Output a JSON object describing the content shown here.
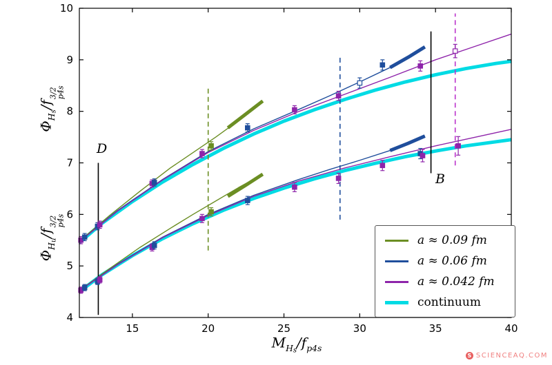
{
  "watermark": {
    "text": "SCIENCEAQ.COM",
    "icon": "S"
  },
  "palette": {
    "green": "#6b8e23",
    "blue": "#1f4e9c",
    "purple": "#8e24aa",
    "magenta": "#bb33cc",
    "cyan": "#00dbe4",
    "black": "#000000"
  },
  "chart_data": {
    "type": "line",
    "xlim": [
      11.5,
      40
    ],
    "ylim": [
      4,
      10
    ],
    "xticks": [
      15,
      20,
      25,
      30,
      35,
      40
    ],
    "yticks": [
      4,
      5,
      6,
      7,
      8,
      9,
      10
    ],
    "xlabel_parts": [
      {
        "t": "M",
        "s": "n"
      },
      {
        "t": "H",
        "s": "sub"
      },
      {
        "t": "s",
        "s": "sub2"
      },
      {
        "t": "/",
        "s": "n"
      },
      {
        "t": "f",
        "s": "n"
      },
      {
        "t": "p4s",
        "s": "sub"
      }
    ],
    "ylabel_upper_parts": [
      {
        "t": "Φ",
        "s": "n"
      },
      {
        "t": "H",
        "s": "sub"
      },
      {
        "t": "s",
        "s": "sub2"
      },
      {
        "t": "/",
        "s": "n"
      },
      {
        "t": "f",
        "s": "n"
      },
      {
        "top": "3/2",
        "bottom": "p4s",
        "s": "stack"
      }
    ],
    "ylabel_lower_parts": [
      {
        "t": "Φ",
        "s": "n"
      },
      {
        "t": "H",
        "s": "sub"
      },
      {
        "t": "u",
        "s": "sub2"
      },
      {
        "t": "/",
        "s": "n"
      },
      {
        "t": "f",
        "s": "n"
      },
      {
        "top": "3/2",
        "bottom": "p4s",
        "s": "stack"
      }
    ],
    "series": [
      {
        "name": "continuum-upper",
        "color": "cyan",
        "width": 5,
        "points": [
          [
            11.5,
            5.45
          ],
          [
            13,
            5.83
          ],
          [
            15,
            6.25
          ],
          [
            17,
            6.63
          ],
          [
            19,
            6.97
          ],
          [
            21,
            7.28
          ],
          [
            23,
            7.56
          ],
          [
            25,
            7.81
          ],
          [
            27,
            8.03
          ],
          [
            29,
            8.23
          ],
          [
            31,
            8.41
          ],
          [
            33,
            8.57
          ],
          [
            35,
            8.71
          ],
          [
            37,
            8.83
          ],
          [
            39,
            8.93
          ],
          [
            40,
            8.97
          ]
        ]
      },
      {
        "name": "continuum-lower",
        "color": "cyan",
        "width": 5,
        "points": [
          [
            11.5,
            4.5
          ],
          [
            13,
            4.83
          ],
          [
            15,
            5.2
          ],
          [
            17,
            5.53
          ],
          [
            19,
            5.82
          ],
          [
            21,
            6.08
          ],
          [
            23,
            6.31
          ],
          [
            25,
            6.51
          ],
          [
            27,
            6.69
          ],
          [
            29,
            6.85
          ],
          [
            31,
            6.99
          ],
          [
            33,
            7.12
          ],
          [
            35,
            7.23
          ],
          [
            37,
            7.33
          ],
          [
            39,
            7.41
          ],
          [
            40,
            7.45
          ]
        ]
      },
      {
        "name": "a0.09-upper",
        "color": "green",
        "width": 1.4,
        "points": [
          [
            11.5,
            5.48
          ],
          [
            13.5,
            5.98
          ],
          [
            15.5,
            6.45
          ],
          [
            17.5,
            6.9
          ],
          [
            19,
            7.2
          ],
          [
            20.5,
            7.5
          ],
          [
            22,
            7.82
          ],
          [
            23.6,
            8.2
          ]
        ]
      },
      {
        "name": "a0.09-lower",
        "color": "green",
        "width": 1.4,
        "points": [
          [
            11.5,
            4.52
          ],
          [
            13.5,
            4.95
          ],
          [
            15.5,
            5.36
          ],
          [
            17.5,
            5.73
          ],
          [
            19,
            6.0
          ],
          [
            20.5,
            6.26
          ],
          [
            22,
            6.52
          ],
          [
            23.6,
            6.78
          ]
        ]
      },
      {
        "name": "a0.06-upper",
        "color": "blue",
        "width": 1.4,
        "points": [
          [
            11.5,
            5.47
          ],
          [
            14,
            6.07
          ],
          [
            17,
            6.68
          ],
          [
            20,
            7.22
          ],
          [
            23,
            7.66
          ],
          [
            26,
            8.04
          ],
          [
            28,
            8.3
          ],
          [
            30,
            8.57
          ],
          [
            32,
            8.85
          ],
          [
            34.3,
            9.25
          ]
        ]
      },
      {
        "name": "a0.06-lower",
        "color": "blue",
        "width": 1.4,
        "points": [
          [
            11.5,
            4.52
          ],
          [
            14,
            5.03
          ],
          [
            17,
            5.56
          ],
          [
            20,
            6.0
          ],
          [
            23,
            6.37
          ],
          [
            26,
            6.68
          ],
          [
            28,
            6.87
          ],
          [
            30,
            7.05
          ],
          [
            32,
            7.24
          ],
          [
            34.3,
            7.52
          ]
        ]
      },
      {
        "name": "a0.042-upper",
        "color": "purple",
        "width": 1.4,
        "points": [
          [
            11.5,
            5.47
          ],
          [
            14,
            6.06
          ],
          [
            17,
            6.67
          ],
          [
            20,
            7.2
          ],
          [
            23,
            7.63
          ],
          [
            26,
            8.0
          ],
          [
            29,
            8.33
          ],
          [
            32,
            8.66
          ],
          [
            35,
            9.0
          ],
          [
            37.5,
            9.25
          ],
          [
            40,
            9.5
          ]
        ]
      },
      {
        "name": "a0.042-lower",
        "color": "purple",
        "width": 1.4,
        "points": [
          [
            11.5,
            4.52
          ],
          [
            14,
            5.02
          ],
          [
            17,
            5.55
          ],
          [
            20,
            5.98
          ],
          [
            23,
            6.35
          ],
          [
            26,
            6.65
          ],
          [
            29,
            6.9
          ],
          [
            32,
            7.12
          ],
          [
            35,
            7.33
          ],
          [
            37.5,
            7.49
          ],
          [
            40,
            7.65
          ]
        ]
      },
      {
        "name": "a0.09-upper-band",
        "color": "green",
        "width": 5,
        "points": [
          [
            21.3,
            7.68
          ],
          [
            22.5,
            7.95
          ],
          [
            23.6,
            8.2
          ]
        ]
      },
      {
        "name": "a0.09-lower-band",
        "color": "green",
        "width": 5,
        "points": [
          [
            21.3,
            6.35
          ],
          [
            22.5,
            6.57
          ],
          [
            23.6,
            6.78
          ]
        ]
      },
      {
        "name": "a0.06-upper-band",
        "color": "blue",
        "width": 5,
        "points": [
          [
            32,
            8.85
          ],
          [
            33.2,
            9.05
          ],
          [
            34.3,
            9.25
          ]
        ]
      },
      {
        "name": "a0.06-lower-band",
        "color": "blue",
        "width": 5,
        "points": [
          [
            32,
            7.24
          ],
          [
            33.2,
            7.38
          ],
          [
            34.3,
            7.52
          ]
        ]
      }
    ],
    "vlines": [
      {
        "x": 12.75,
        "y0": 4.05,
        "y1": 7.0,
        "style": "solid",
        "color": "black",
        "label": "D"
      },
      {
        "x": 34.7,
        "y0": 6.8,
        "y1": 9.55,
        "style": "solid",
        "color": "black",
        "label": "B"
      },
      {
        "x": 20.0,
        "y0": 5.3,
        "y1": 8.45,
        "style": "dashed",
        "color": "green",
        "label": ""
      },
      {
        "x": 28.7,
        "y0": 5.9,
        "y1": 9.1,
        "style": "dashed",
        "color": "blue",
        "label": ""
      },
      {
        "x": 36.3,
        "y0": 6.95,
        "y1": 9.9,
        "style": "dashed",
        "color": "magenta",
        "label": ""
      }
    ],
    "markers": [
      {
        "x": 11.6,
        "y": 5.5,
        "e": 0.07,
        "c": "purple",
        "o": false
      },
      {
        "x": 11.85,
        "y": 5.56,
        "e": 0.07,
        "c": "blue",
        "o": false
      },
      {
        "x": 12.7,
        "y": 5.77,
        "e": 0.07,
        "c": "blue",
        "o": false
      },
      {
        "x": 12.85,
        "y": 5.8,
        "e": 0.07,
        "c": "purple",
        "o": false
      },
      {
        "x": 16.3,
        "y": 6.6,
        "e": 0.07,
        "c": "purple",
        "o": false
      },
      {
        "x": 16.45,
        "y": 6.62,
        "e": 0.07,
        "c": "blue",
        "o": false
      },
      {
        "x": 19.6,
        "y": 7.18,
        "e": 0.08,
        "c": "purple",
        "o": false
      },
      {
        "x": 20.2,
        "y": 7.33,
        "e": 0.08,
        "c": "green",
        "o": false
      },
      {
        "x": 22.6,
        "y": 7.68,
        "e": 0.08,
        "c": "blue",
        "o": false
      },
      {
        "x": 25.7,
        "y": 8.03,
        "e": 0.08,
        "c": "purple",
        "o": false
      },
      {
        "x": 28.6,
        "y": 8.3,
        "e": 0.09,
        "c": "purple",
        "o": false
      },
      {
        "x": 30.0,
        "y": 8.55,
        "e": 0.1,
        "c": "blue",
        "o": true
      },
      {
        "x": 31.5,
        "y": 8.9,
        "e": 0.1,
        "c": "blue",
        "o": false
      },
      {
        "x": 34.0,
        "y": 8.88,
        "e": 0.1,
        "c": "purple",
        "o": false
      },
      {
        "x": 36.3,
        "y": 9.17,
        "e": 0.13,
        "c": "purple",
        "o": true
      },
      {
        "x": 11.6,
        "y": 4.53,
        "e": 0.06,
        "c": "purple",
        "o": false
      },
      {
        "x": 11.85,
        "y": 4.58,
        "e": 0.06,
        "c": "blue",
        "o": false
      },
      {
        "x": 12.7,
        "y": 4.7,
        "e": 0.06,
        "c": "blue",
        "o": false
      },
      {
        "x": 12.85,
        "y": 4.73,
        "e": 0.06,
        "c": "purple",
        "o": false
      },
      {
        "x": 16.3,
        "y": 5.36,
        "e": 0.07,
        "c": "purple",
        "o": false
      },
      {
        "x": 16.45,
        "y": 5.4,
        "e": 0.07,
        "c": "blue",
        "o": false
      },
      {
        "x": 19.6,
        "y": 5.92,
        "e": 0.08,
        "c": "purple",
        "o": false
      },
      {
        "x": 20.2,
        "y": 6.05,
        "e": 0.08,
        "c": "green",
        "o": false
      },
      {
        "x": 22.6,
        "y": 6.27,
        "e": 0.08,
        "c": "blue",
        "o": false
      },
      {
        "x": 25.7,
        "y": 6.53,
        "e": 0.09,
        "c": "purple",
        "o": false
      },
      {
        "x": 28.6,
        "y": 6.7,
        "e": 0.1,
        "c": "purple",
        "o": false
      },
      {
        "x": 31.5,
        "y": 6.95,
        "e": 0.1,
        "c": "purple",
        "o": false
      },
      {
        "x": 34.0,
        "y": 7.18,
        "e": 0.1,
        "c": "blue",
        "o": false
      },
      {
        "x": 34.15,
        "y": 7.14,
        "e": 0.12,
        "c": "purple",
        "o": false
      },
      {
        "x": 36.5,
        "y": 7.33,
        "e": 0.18,
        "c": "purple",
        "o": false
      }
    ],
    "legend": [
      {
        "label": "a ≈ 0.09 fm",
        "color": "green",
        "math": true
      },
      {
        "label": "a ≈ 0.06 fm",
        "color": "blue",
        "math": true
      },
      {
        "label": "a ≈ 0.042 fm",
        "color": "purple",
        "math": true
      },
      {
        "label": "continuum",
        "color": "cyan",
        "math": false
      }
    ]
  }
}
